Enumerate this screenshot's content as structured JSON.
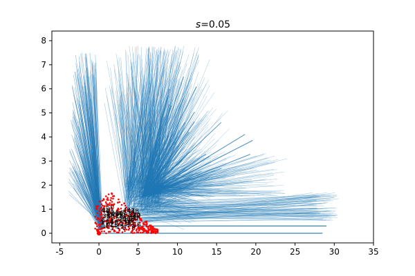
{
  "chart_data": {
    "type": "line",
    "title": "s=0.05",
    "title_var": "s",
    "title_rest": "=0.05",
    "xlabel": "",
    "ylabel": "",
    "xlim": [
      -6,
      35
    ],
    "ylim": [
      -0.4,
      8.4
    ],
    "x_ticks": [
      -5,
      0,
      5,
      10,
      15,
      20,
      25,
      30,
      35
    ],
    "y_ticks": [
      0,
      1,
      2,
      3,
      4,
      5,
      6,
      7,
      8
    ],
    "grid": false,
    "colors": {
      "lines": "#1f77b4",
      "points": "#ff0000",
      "labels": "#000000"
    },
    "fan_origin": [
      0,
      0.1
    ],
    "fan_hub": [
      5.5,
      1.5
    ],
    "fan_series": [
      {
        "description": "dense fan rising to upper-left peak",
        "approx_x_range": [
          -4,
          16
        ],
        "approx_y_max": 7.8
      },
      {
        "description": "mid fan spreading right",
        "approx_x_range": [
          5,
          24
        ],
        "approx_y_max": 3.4
      },
      {
        "description": "near-horizontal fan",
        "approx_x_range": [
          5,
          30.5
        ],
        "approx_y_max": 1.7
      }
    ],
    "bottom_lines": [
      {
        "x_end": 29.0,
        "y": 0.3
      },
      {
        "x_end": 28.5,
        "y": 0.0
      }
    ],
    "red_points_range": {
      "x": [
        -0.5,
        7.5
      ],
      "y": [
        0,
        1.7
      ]
    },
    "annotations": [
      "1",
      "2",
      "3",
      "4",
      "5",
      "6",
      "7",
      "8",
      "9",
      "10",
      "11",
      "12",
      "13",
      "14",
      "15",
      "16",
      "17",
      "18",
      "19",
      "20",
      "21",
      "22",
      "23",
      "24",
      "25",
      "26",
      "27",
      "28",
      "29",
      "30",
      "31",
      "32",
      "33",
      "34",
      "35",
      "36",
      "37",
      "38",
      "39",
      "40",
      "41",
      "42",
      "43",
      "44",
      "45",
      "46",
      "47",
      "48",
      "49",
      "50"
    ]
  }
}
